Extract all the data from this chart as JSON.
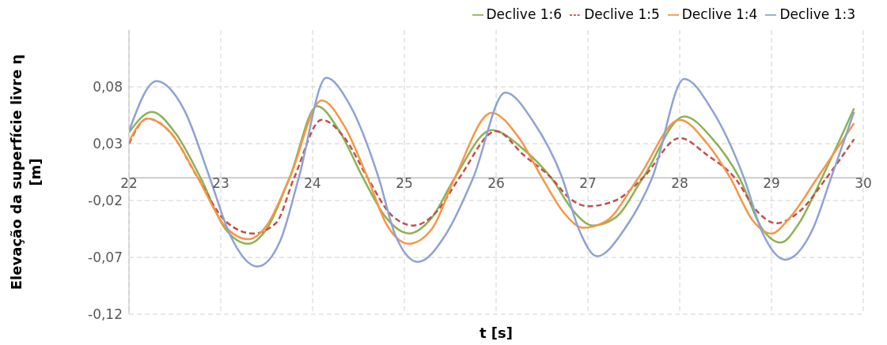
{
  "chart_data": {
    "type": "line",
    "xlabel": "t [s]",
    "ylabel": "Elevação da superfície livre η [m]",
    "xlim": [
      22,
      30
    ],
    "xticks": [
      22,
      23,
      24,
      25,
      26,
      27,
      28,
      29,
      30
    ],
    "ylim": [
      -0.12,
      0.13
    ],
    "yticks": [
      {
        "value": 0.08,
        "label": "0,08"
      },
      {
        "value": 0.03,
        "label": "0,03"
      },
      {
        "value": -0.02,
        "label": "-0,02"
      },
      {
        "value": -0.07,
        "label": "-0,07"
      },
      {
        "value": -0.12,
        "label": "-0,12"
      }
    ],
    "grid": true,
    "legend": "top right",
    "marker": "none",
    "series": [
      {
        "name": "Declive 1:6",
        "color": "#8db255",
        "line_style": "solid",
        "x": [
          22,
          22.25,
          22.5,
          22.78,
          23.05,
          23.3,
          23.5,
          23.75,
          24.05,
          24.3,
          24.55,
          24.8,
          25.05,
          25.3,
          25.55,
          25.95,
          26.3,
          26.6,
          26.85,
          27.05,
          27.3,
          27.6,
          28.05,
          28.35,
          28.65,
          28.9,
          29.1,
          29.3,
          29.55,
          29.9
        ],
        "values": [
          0.04,
          0.058,
          0.04,
          0,
          -0.045,
          -0.058,
          -0.045,
          0,
          0.063,
          0.04,
          0,
          -0.035,
          -0.049,
          -0.035,
          0,
          0.042,
          0.025,
          0,
          -0.03,
          -0.042,
          -0.035,
          0,
          0.054,
          0.035,
          0,
          -0.045,
          -0.057,
          -0.04,
          0,
          0.061
        ]
      },
      {
        "name": "Declive 1:5",
        "color": "#c0504d",
        "line_style": "dashed",
        "x": [
          22,
          22.2,
          22.45,
          22.75,
          23.05,
          23.35,
          23.6,
          23.8,
          24.1,
          24.35,
          24.6,
          24.85,
          25.1,
          25.35,
          25.6,
          26.0,
          26.3,
          26.6,
          26.8,
          27.0,
          27.3,
          27.6,
          28.0,
          28.3,
          28.6,
          28.85,
          29.05,
          29.3,
          29.6,
          29.9
        ],
        "values": [
          0.03,
          0.052,
          0.04,
          0,
          -0.038,
          -0.049,
          -0.04,
          0,
          0.051,
          0.035,
          0,
          -0.032,
          -0.042,
          -0.03,
          0,
          0.041,
          0.02,
          0,
          -0.018,
          -0.025,
          -0.02,
          0,
          0.035,
          0.02,
          0,
          -0.03,
          -0.04,
          -0.03,
          0,
          0.034
        ]
      },
      {
        "name": "Declive 1:4",
        "color": "#f79646",
        "line_style": "solid",
        "x": [
          22,
          22.2,
          22.45,
          22.75,
          23.05,
          23.3,
          23.5,
          23.75,
          24.1,
          24.35,
          24.6,
          24.8,
          25.05,
          25.3,
          25.55,
          25.95,
          26.25,
          26.5,
          26.75,
          26.95,
          27.2,
          27.55,
          28.0,
          28.3,
          28.55,
          28.8,
          29.0,
          29.2,
          29.5,
          29.9
        ],
        "values": [
          0.032,
          0.052,
          0.04,
          0,
          -0.043,
          -0.054,
          -0.042,
          0,
          0.068,
          0.045,
          0,
          -0.04,
          -0.058,
          -0.045,
          0,
          0.057,
          0.035,
          0,
          -0.032,
          -0.044,
          -0.038,
          0,
          0.051,
          0.03,
          0,
          -0.038,
          -0.049,
          -0.035,
          0,
          0.048
        ]
      },
      {
        "name": "Declive 1:3",
        "color": "#8ea2d4",
        "line_style": "solid",
        "x": [
          22,
          22.3,
          22.6,
          22.88,
          23.1,
          23.4,
          23.65,
          23.85,
          24.15,
          24.4,
          24.72,
          24.9,
          25.15,
          25.45,
          25.75,
          26.1,
          26.4,
          26.72,
          26.9,
          27.1,
          27.4,
          27.7,
          28.05,
          28.35,
          28.7,
          28.9,
          29.15,
          29.45,
          29.65,
          29.9
        ],
        "values": [
          0.041,
          0.085,
          0.06,
          0,
          -0.05,
          -0.078,
          -0.055,
          0,
          0.088,
          0.065,
          0,
          -0.05,
          -0.074,
          -0.05,
          0,
          0.075,
          0.05,
          0,
          -0.045,
          -0.069,
          -0.045,
          0,
          0.087,
          0.06,
          0,
          -0.048,
          -0.072,
          -0.045,
          0,
          0.058
        ]
      }
    ]
  }
}
